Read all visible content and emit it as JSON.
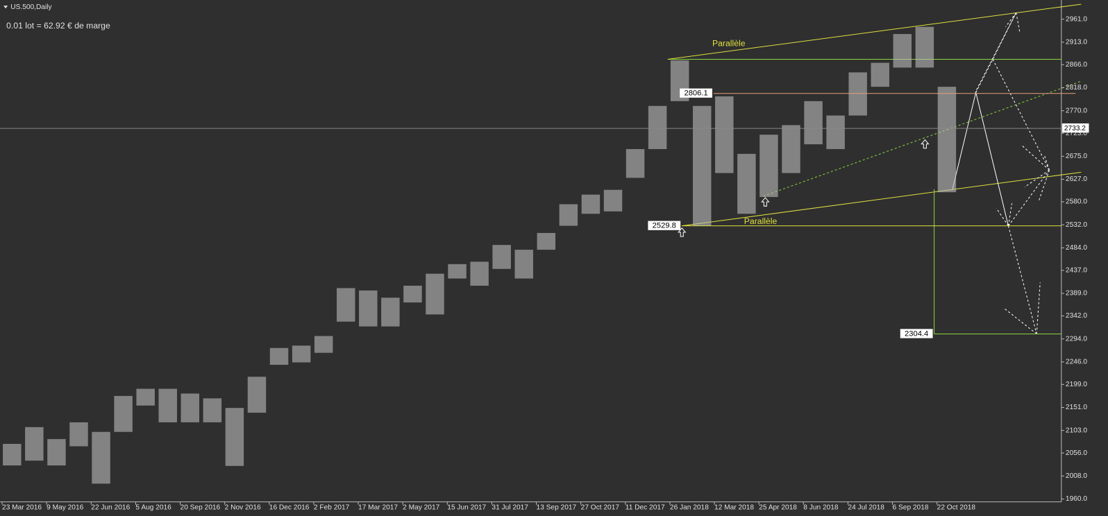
{
  "chart_data": {
    "type": "ohlc",
    "title": "US.500,Daily",
    "annotation": "0.01 lot = 62.92 € de marge",
    "categories": [
      "23 Mar 2016",
      null,
      "9 May 2016",
      null,
      "22 Jun 2016",
      null,
      "5 Aug 2016",
      null,
      "20 Sep 2016",
      null,
      "2 Nov 2016",
      null,
      "16 Dec 2016",
      null,
      "2 Feb 2017",
      null,
      "17 Mar 2017",
      null,
      "2 May 2017",
      null,
      "15 Jun 2017",
      null,
      "31 Jul 2017",
      null,
      "13 Sep 2017",
      null,
      "27 Oct 2017",
      null,
      "11 Dec 2017",
      null,
      "26 Jan 2018",
      null,
      "12 Mar 2018",
      null,
      "25 Apr 2018",
      null,
      "8 Jun 2018",
      null,
      "24 Jul 2018",
      null,
      "6 Sep 2018",
      null,
      "22 Oct 2018"
    ],
    "low": [
      2030,
      2040,
      2030,
      2070,
      1992,
      2100,
      2155,
      2120,
      2120,
      2120,
      2029,
      2140,
      2240,
      2245,
      2265,
      2330,
      2320,
      2320,
      2370,
      2345,
      2420,
      2405,
      2440,
      2420,
      2480,
      2530,
      2555,
      2560,
      2630,
      2690,
      2790,
      2530,
      2640,
      2555,
      2590,
      2640,
      2700,
      2690,
      2760,
      2820,
      2860,
      2860,
      2600
    ],
    "high": [
      2075,
      2110,
      2085,
      2120,
      2100,
      2175,
      2190,
      2190,
      2180,
      2170,
      2150,
      2215,
      2275,
      2280,
      2300,
      2400,
      2395,
      2380,
      2405,
      2430,
      2450,
      2455,
      2490,
      2480,
      2515,
      2575,
      2595,
      2605,
      2690,
      2780,
      2875,
      2780,
      2800,
      2680,
      2720,
      2740,
      2790,
      2760,
      2850,
      2870,
      2930,
      2945,
      2820
    ],
    "color": "#bcbcbc",
    "ylim": [
      1954,
      3001
    ],
    "yticks": [
      {
        "value": 2961,
        "label": "2961.0"
      },
      {
        "value": 2913,
        "label": "2913.0"
      },
      {
        "value": 2866,
        "label": "2866.0"
      },
      {
        "value": 2818,
        "label": "2818.0"
      },
      {
        "value": 2770,
        "label": "2770.0"
      },
      {
        "value": 2723,
        "label": "2723.0"
      },
      {
        "value": 2675,
        "label": "2675.0"
      },
      {
        "value": 2627,
        "label": "2627.0"
      },
      {
        "value": 2580,
        "label": "2580.0"
      },
      {
        "value": 2532,
        "label": "2532.0"
      },
      {
        "value": 2484,
        "label": "2484.0"
      },
      {
        "value": 2437,
        "label": "2437.0"
      },
      {
        "value": 2389,
        "label": "2389.0"
      },
      {
        "value": 2342,
        "label": "2342.0"
      },
      {
        "value": 2294,
        "label": "2294.0"
      },
      {
        "value": 2246,
        "label": "2246.0"
      },
      {
        "value": 2199,
        "label": "2199.0"
      },
      {
        "value": 2151,
        "label": "2151.0"
      },
      {
        "value": 2103,
        "label": "2103.0"
      },
      {
        "value": 2056,
        "label": "2056.0"
      },
      {
        "value": 2008,
        "label": "2008.0"
      },
      {
        "value": 1960,
        "label": "1960.0"
      }
    ],
    "current_price": 2733.2,
    "levels": [
      {
        "value": 2806.1,
        "color": "#e8a07a"
      },
      {
        "value": 2529.8,
        "color": "#e0e040"
      },
      {
        "value": 2304.4,
        "color": "#8cd63c"
      }
    ],
    "labels": [
      "Parallèle",
      "Parallèle"
    ]
  }
}
